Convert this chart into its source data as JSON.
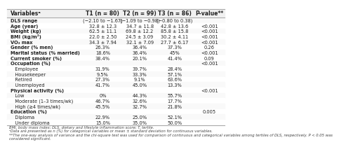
{
  "title_row": [
    "Variablesᵃ",
    "T1 (n = 80)",
    "T2 (n = 99)",
    "T3 (n = 86)",
    "P-value**"
  ],
  "rows": [
    [
      "DLS range",
      "(−2.10 to −1.67)",
      "(−1.09 to −0.98)",
      "(−0.80 to 0.38)",
      ""
    ],
    [
      "Age (year)",
      "32.8 ± 12.3",
      "34.7 ± 11.8",
      "42.8 ± 13.6",
      "<0.001"
    ],
    [
      "Weight (kg)",
      "62.5 ± 11.1",
      "69.8 ± 12.2",
      "85.8 ± 15.8",
      "<0.001"
    ],
    [
      "BMI (kg/m²)",
      "22.0 ± 2.50",
      "24.5 ± 3.09",
      "30.2 ± 4.11",
      "<0.001"
    ],
    [
      "VO₂ max",
      "34.3 ± 7.94",
      "32.1 ± 7.09",
      "27.7 ± 6.17",
      "<0.001"
    ],
    [
      "Gender (% men)",
      "26.3%",
      "36.4%",
      "37.3%",
      "0.26"
    ],
    [
      "Marital status (% married)",
      "18.6%",
      "36.4%",
      "45%",
      "<0.001"
    ],
    [
      "Current smoker (%)",
      "38.4%",
      "20.1%",
      "41.4%",
      "0.09"
    ],
    [
      "Occupation (%)",
      "",
      "",
      "",
      "<0.001"
    ],
    [
      "   Employee",
      "31.9%",
      "39.7%",
      "28.4%",
      ""
    ],
    [
      "   Housekeeper",
      "9.5%",
      "33.3%",
      "57.1%",
      ""
    ],
    [
      "   Retired",
      "27.3%",
      "9.1%",
      "63.6%",
      ""
    ],
    [
      "   Unemployed",
      "41.7%",
      "45.0%",
      "13.3%",
      ""
    ],
    [
      "Physical activity (%)",
      "",
      "",
      "",
      "<0.001"
    ],
    [
      "   Low",
      "0%",
      "44.3%",
      "55.7%",
      ""
    ],
    [
      "   Moderate (1–3 times/wk)",
      "46.7%",
      "32.6%",
      "17.7%",
      ""
    ],
    [
      "   High (≥4 times/wk)",
      "45.5%",
      "32.7%",
      "21.8%",
      ""
    ],
    [
      "Education (%)",
      "",
      "",
      "",
      "0.005"
    ],
    [
      "   Diploma",
      "22.9%",
      "25.0%",
      "52.1%",
      ""
    ],
    [
      "   Under diploma",
      "15.0%",
      "35.0%",
      "50.0%",
      ""
    ]
  ],
  "footnotes": [
    "BMI, body mass index; DLS, dietary and lifestyle inflammation score; T, tertile.",
    "ᵃData are presented as n (%) for categorical variables or mean ± standard deviation for continuous variables.",
    "**The one-way analysis of variance and the chi-square test was used for comparison of continuous and categorical variables among tertiles of DLS, respectively. P < 0.05 was",
    "considered significant."
  ],
  "border_color": "#aaaaaa",
  "text_color": "#222222",
  "header_font_size": 5.5,
  "body_font_size": 4.8,
  "footnote_font_size": 3.8
}
